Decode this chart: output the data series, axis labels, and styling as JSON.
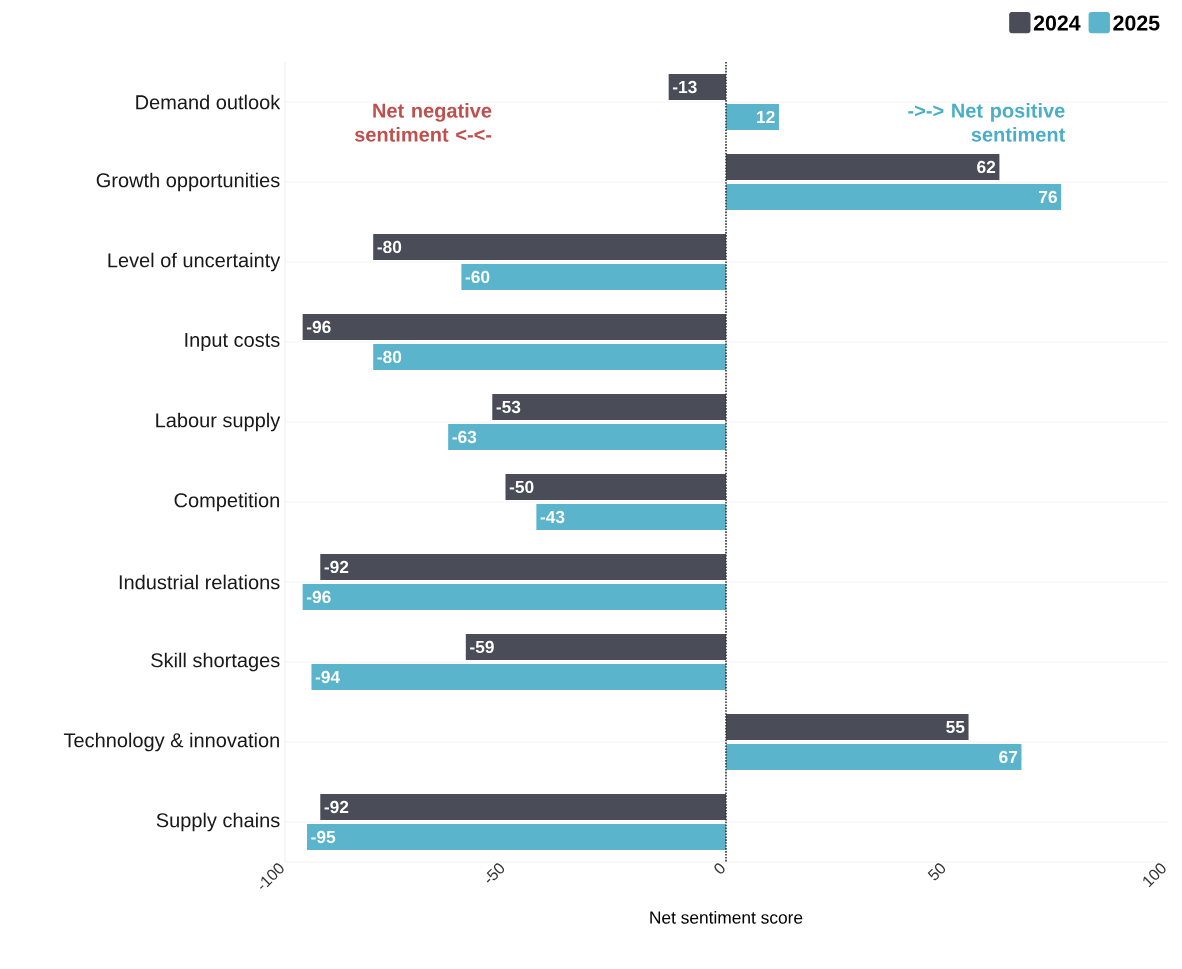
{
  "chart_data": {
    "type": "bar",
    "orientation": "horizontal",
    "xlabel": "Net sentiment score",
    "categories": [
      "Demand outlook",
      "Growth opportunities",
      "Level of uncertainty",
      "Input costs",
      "Labour supply",
      "Competition",
      "Industrial relations",
      "Skill shortages",
      "Technology & innovation",
      "Supply chains"
    ],
    "series": [
      {
        "name": "2024",
        "color": "#4a4d57",
        "values": [
          -13,
          62,
          -80,
          -96,
          -53,
          -50,
          -92,
          -59,
          55,
          -92
        ]
      },
      {
        "name": "2025",
        "color": "#5ab4cc",
        "values": [
          12,
          76,
          -60,
          -80,
          -63,
          -43,
          -96,
          -94,
          67,
          -95
        ]
      }
    ],
    "xlim": [
      -100,
      100
    ],
    "xticks": [
      -100,
      -50,
      0,
      50,
      100
    ],
    "ref_lines": [
      {
        "axis": "x",
        "value": 0,
        "line_style": "dotted",
        "color": "#333333"
      }
    ],
    "annotations": [
      "Net negative sentiment <-<-",
      "->-> Net positive sentiment"
    ],
    "data_labels": true,
    "grid": "y",
    "legend": "top right"
  }
}
